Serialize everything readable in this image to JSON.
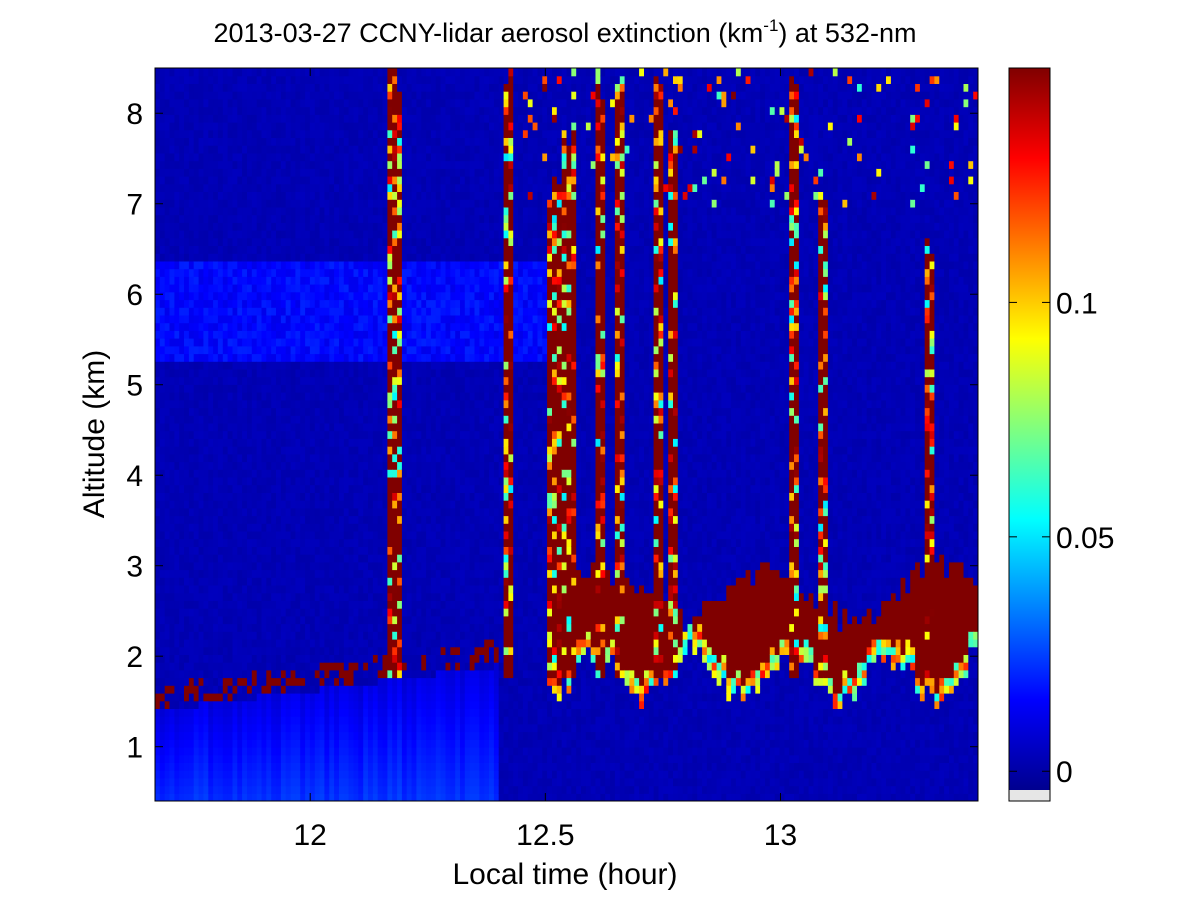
{
  "chart_data": {
    "type": "heatmap",
    "title_main": "2013-03-27 CCNY-lidar aerosol extinction (km",
    "title_sup": "-1",
    "title_tail": ") at 532-nm",
    "xlabel": "Local time (hour)",
    "ylabel": "Altitude (km)",
    "xlim": [
      11.67,
      13.42
    ],
    "ylim": [
      0.4,
      8.5
    ],
    "x_ticks": [
      {
        "v": 12,
        "label": "12"
      },
      {
        "v": 12.5,
        "label": "12.5"
      },
      {
        "v": 13,
        "label": "13"
      }
    ],
    "y_ticks": [
      {
        "v": 1,
        "label": "1"
      },
      {
        "v": 2,
        "label": "2"
      },
      {
        "v": 3,
        "label": "3"
      },
      {
        "v": 4,
        "label": "4"
      },
      {
        "v": 5,
        "label": "5"
      },
      {
        "v": 6,
        "label": "6"
      },
      {
        "v": 7,
        "label": "7"
      },
      {
        "v": 8,
        "label": "8"
      }
    ],
    "colormap": "jet",
    "colorbar": {
      "range": [
        -0.004,
        0.15
      ],
      "ticks": [
        {
          "v": 0,
          "label": "0"
        },
        {
          "v": 0.05,
          "label": "0.05"
        },
        {
          "v": 0.1,
          "label": "0.1"
        }
      ]
    },
    "layers": {
      "background": 0.004,
      "lower_layer": {
        "range_time": [
          11.67,
          12.4
        ],
        "top_altitude": [
          1.4,
          1.9
        ],
        "value": 0.016
      },
      "elevated_layer": {
        "range_time": [
          11.67,
          12.55
        ],
        "altitude": [
          5.3,
          6.4
        ],
        "value": 0.017
      },
      "cloud_base_band": {
        "range_time": [
          12.5,
          13.42
        ],
        "altitude": [
          2.0,
          2.9
        ],
        "value": 0.15
      },
      "plumes": [
        {
          "time": 12.18,
          "top": 8.5
        },
        {
          "time": 12.42,
          "top": 8.5
        },
        {
          "time": 12.52,
          "top": 7.4
        },
        {
          "time": 12.55,
          "top": 8.0
        },
        {
          "time": 12.62,
          "top": 8.5
        },
        {
          "time": 12.66,
          "top": 8.5
        },
        {
          "time": 12.74,
          "top": 8.5
        },
        {
          "time": 12.77,
          "top": 8.0
        },
        {
          "time": 13.03,
          "top": 8.4
        },
        {
          "time": 13.09,
          "top": 7.2
        },
        {
          "time": 13.32,
          "top": 6.6
        }
      ]
    }
  }
}
